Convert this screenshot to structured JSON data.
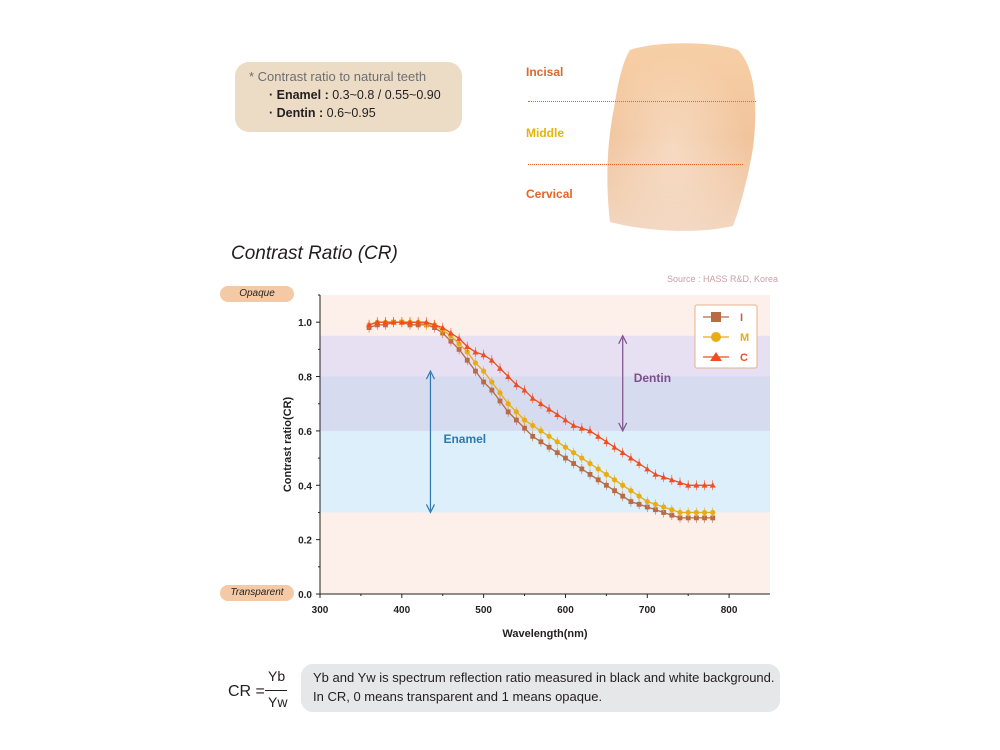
{
  "note": {
    "title": "* Contrast ratio to natural teeth",
    "enamel_label": "· Enamel :",
    "enamel_value": "0.3~0.8 / 0.55~0.90",
    "dentin_label": "· Dentin :",
    "dentin_value": "0.6~0.95"
  },
  "tooth_zones": {
    "incisal": "Incisal",
    "middle": "Middle",
    "cervical": "Cervical"
  },
  "colors": {
    "incisal": "#e8632a",
    "middle": "#e5b40a",
    "cervical": "#e8632a",
    "series_I": "#b86b45",
    "series_M": "#e8ac14",
    "series_C": "#ef4e23",
    "enamel_arrow": "#2e79b0",
    "dentin_arrow": "#7d4f8a"
  },
  "chart_data": {
    "type": "line",
    "title": "Contrast Ratio (CR)",
    "source": "Source : HASS R&D, Korea",
    "xlabel": "Wavelength(nm)",
    "ylabel": "Contrast ratio(CR)",
    "xlim": [
      300,
      850
    ],
    "ylim": [
      0,
      1.1
    ],
    "xticks": [
      300,
      400,
      500,
      600,
      700,
      800
    ],
    "yticks": [
      0.0,
      0.2,
      0.4,
      0.6,
      0.8,
      1.0
    ],
    "ytick_labels": [
      "0.0",
      "0.2",
      "0.4",
      "0.6",
      "0.8",
      "1.0"
    ],
    "legend_position": "top-right",
    "bands": [
      {
        "name": "Enamel",
        "y_from": 0.3,
        "y_to": 0.8,
        "color": "#dceffa"
      },
      {
        "name": "Dentin",
        "y_from": 0.6,
        "y_to": 0.95,
        "color": "#e6e0f2"
      }
    ],
    "band_overlap_color": "#d6dbef",
    "background_color": "#fdf0ea",
    "range_labels": {
      "top": "Opaque",
      "bottom": "Transparent"
    },
    "arrows": [
      {
        "label": "Enamel",
        "x": 435,
        "y_from": 0.3,
        "y_to": 0.82
      },
      {
        "label": "Dentin",
        "x": 670,
        "y_from": 0.6,
        "y_to": 0.95
      }
    ],
    "x": [
      360,
      370,
      380,
      390,
      400,
      410,
      420,
      430,
      440,
      450,
      460,
      470,
      480,
      490,
      500,
      510,
      520,
      530,
      540,
      550,
      560,
      570,
      580,
      590,
      600,
      610,
      620,
      630,
      640,
      650,
      660,
      670,
      680,
      690,
      700,
      710,
      720,
      730,
      740,
      750,
      760,
      770,
      780
    ],
    "series": [
      {
        "name": "I",
        "marker": "square",
        "values": [
          0.98,
          0.99,
          0.99,
          1.0,
          1.0,
          0.99,
          0.99,
          0.99,
          0.98,
          0.96,
          0.93,
          0.9,
          0.86,
          0.82,
          0.78,
          0.75,
          0.71,
          0.67,
          0.64,
          0.61,
          0.58,
          0.56,
          0.54,
          0.52,
          0.5,
          0.48,
          0.46,
          0.44,
          0.42,
          0.4,
          0.38,
          0.36,
          0.34,
          0.33,
          0.32,
          0.31,
          0.3,
          0.29,
          0.28,
          0.28,
          0.28,
          0.28,
          0.28
        ]
      },
      {
        "name": "M",
        "marker": "circle",
        "values": [
          0.99,
          1.0,
          1.0,
          1.0,
          1.0,
          1.0,
          1.0,
          0.99,
          0.99,
          0.97,
          0.95,
          0.92,
          0.89,
          0.85,
          0.82,
          0.78,
          0.74,
          0.7,
          0.67,
          0.64,
          0.62,
          0.6,
          0.58,
          0.56,
          0.54,
          0.52,
          0.5,
          0.48,
          0.46,
          0.44,
          0.42,
          0.4,
          0.38,
          0.36,
          0.34,
          0.33,
          0.32,
          0.31,
          0.3,
          0.3,
          0.3,
          0.3,
          0.3
        ]
      },
      {
        "name": "C",
        "marker": "triangle",
        "values": [
          0.99,
          1.0,
          1.0,
          1.0,
          1.0,
          1.0,
          1.0,
          1.0,
          0.99,
          0.98,
          0.96,
          0.94,
          0.91,
          0.89,
          0.88,
          0.86,
          0.83,
          0.8,
          0.77,
          0.75,
          0.72,
          0.7,
          0.68,
          0.66,
          0.64,
          0.62,
          0.61,
          0.6,
          0.58,
          0.56,
          0.54,
          0.52,
          0.5,
          0.48,
          0.46,
          0.44,
          0.43,
          0.42,
          0.41,
          0.4,
          0.4,
          0.4,
          0.4
        ]
      }
    ]
  },
  "formula": {
    "lhs": "CR =",
    "numerator": "Yb",
    "denominator": "Yw"
  },
  "footnote": {
    "line1": "Yb and Yw is spectrum reflection ratio measured in black and white background.",
    "line2": "In CR, 0 means transparent and 1 means opaque."
  }
}
